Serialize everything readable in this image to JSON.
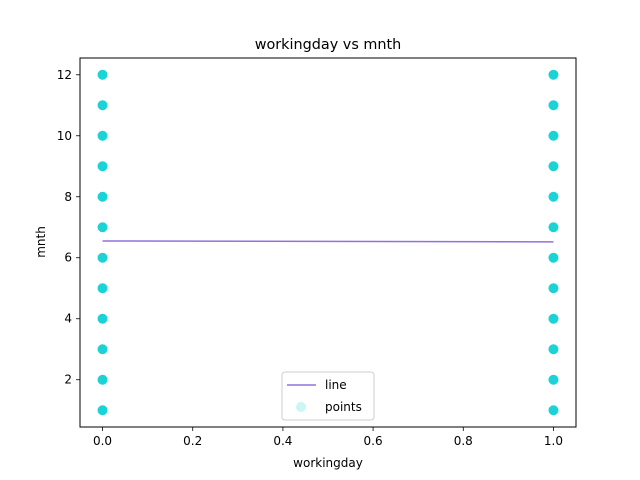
{
  "chart_data": {
    "type": "scatter",
    "title": "workingday vs mnth",
    "xlabel": "workingday",
    "ylabel": "mnth",
    "xlim": [
      -0.05,
      1.05
    ],
    "ylim": [
      0.45,
      12.55
    ],
    "x_ticks": [
      0.0,
      0.2,
      0.4,
      0.6,
      0.8,
      1.0
    ],
    "x_tick_labels": [
      "0.0",
      "0.2",
      "0.4",
      "0.6",
      "0.8",
      "1.0"
    ],
    "y_ticks": [
      2,
      4,
      6,
      8,
      10,
      12
    ],
    "y_tick_labels": [
      "2",
      "4",
      "6",
      "8",
      "10",
      "12"
    ],
    "grid": false,
    "legend_position": "bottom-center",
    "colors": {
      "line": "#9370DB",
      "points": "#00CED1"
    },
    "series": [
      {
        "name": "line",
        "kind": "line",
        "x": [
          0.0,
          1.0
        ],
        "y": [
          6.55,
          6.52
        ]
      },
      {
        "name": "points",
        "kind": "scatter",
        "x": [
          0,
          0,
          0,
          0,
          0,
          0,
          0,
          0,
          0,
          0,
          0,
          0,
          1,
          1,
          1,
          1,
          1,
          1,
          1,
          1,
          1,
          1,
          1,
          1
        ],
        "y": [
          1,
          2,
          3,
          4,
          5,
          6,
          7,
          8,
          9,
          10,
          11,
          12,
          1,
          2,
          3,
          4,
          5,
          6,
          7,
          8,
          9,
          10,
          11,
          12
        ]
      }
    ]
  }
}
